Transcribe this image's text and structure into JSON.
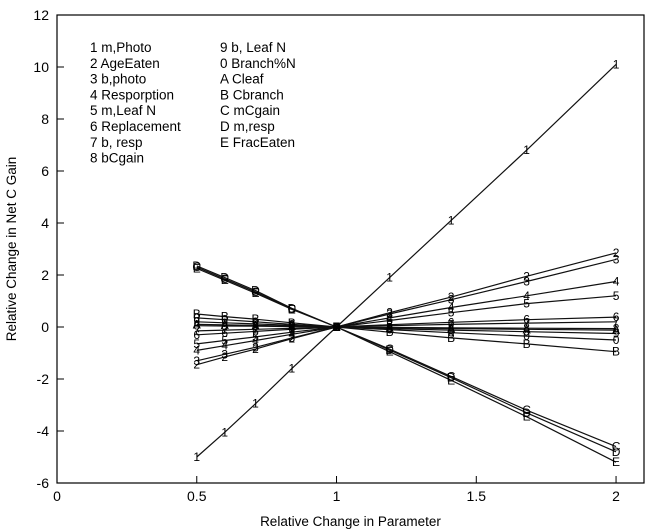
{
  "chart_data": {
    "type": "line",
    "xlabel": "Relative Change in Parameter",
    "ylabel": "Relative Change in Net C Gain",
    "xlim": [
      0,
      2.1
    ],
    "ylim": [
      -6,
      12
    ],
    "x_ticks": [
      0,
      0.5,
      1,
      1.5,
      2
    ],
    "x_tick_labels": [
      "0",
      "0.5",
      "1",
      "1.5",
      "2"
    ],
    "y_ticks": [
      -6,
      -4,
      -2,
      0,
      2,
      4,
      6,
      8,
      10,
      12
    ],
    "y_tick_labels": [
      "-6",
      "-4",
      "-2",
      "0",
      "2",
      "4",
      "6",
      "8",
      "10",
      "12"
    ],
    "grid": false,
    "legend_position": "top-left",
    "legend": [
      "1 m,Photo",
      "2 AgeEaten",
      "3 b,photo",
      "4 Resporption",
      "5 m,Leaf N",
      "6 Replacement",
      "7 b, resp",
      "8 bCgain",
      "9 b, Leaf N",
      "0 Branch%N",
      "A Cleaf",
      "B Cbranch",
      "C mCgain",
      "D m,resp",
      "E FracEaten"
    ],
    "x": [
      0.5,
      0.6,
      0.71,
      0.84,
      1,
      1.19,
      1.41,
      1.68,
      2
    ],
    "series": [
      {
        "name": "1 m,Photo",
        "marker": "1",
        "values": [
          -5.0,
          -4.05,
          -2.95,
          -1.6,
          0,
          1.9,
          4.1,
          6.8,
          10.1
        ]
      },
      {
        "name": "2 AgeEaten",
        "marker": "2",
        "values": [
          -1.45,
          -1.15,
          -0.85,
          -0.45,
          0,
          0.55,
          1.15,
          1.95,
          2.85
        ]
      },
      {
        "name": "3 b,photo",
        "marker": "3",
        "values": [
          -1.3,
          -1.05,
          -0.78,
          -0.42,
          0,
          0.5,
          1.05,
          1.75,
          2.6
        ]
      },
      {
        "name": "4 Resporption",
        "marker": "4",
        "values": [
          -0.9,
          -0.72,
          -0.52,
          -0.28,
          0,
          0.35,
          0.75,
          1.2,
          1.75
        ]
      },
      {
        "name": "5 m,Leaf N",
        "marker": "5",
        "values": [
          -0.65,
          -0.52,
          -0.38,
          -0.2,
          0,
          0.25,
          0.55,
          0.9,
          1.2
        ]
      },
      {
        "name": "6 Replacement",
        "marker": "6",
        "values": [
          -0.3,
          -0.24,
          -0.17,
          -0.09,
          0,
          0.09,
          0.18,
          0.28,
          0.38
        ]
      },
      {
        "name": "7 b, resp",
        "marker": "7",
        "values": [
          -0.15,
          -0.12,
          -0.09,
          -0.05,
          0,
          0.05,
          0.1,
          0.15,
          0.2
        ]
      },
      {
        "name": "8 bCgain",
        "marker": "8",
        "values": [
          0.05,
          0.04,
          0.03,
          0.015,
          0,
          -0.015,
          -0.03,
          -0.045,
          -0.06
        ]
      },
      {
        "name": "9 b, Leaf N",
        "marker": "9",
        "values": [
          0.2,
          0.16,
          0.12,
          0.06,
          0,
          -0.06,
          -0.12,
          -0.18,
          -0.25
        ]
      },
      {
        "name": "0 Branch%N",
        "marker": "0",
        "values": [
          0.35,
          0.28,
          0.2,
          0.1,
          0,
          -0.1,
          -0.22,
          -0.35,
          -0.5
        ]
      },
      {
        "name": "A Cleaf",
        "marker": "A",
        "values": [
          0.1,
          0.08,
          0.06,
          0.03,
          0,
          -0.03,
          -0.06,
          -0.09,
          -0.12
        ]
      },
      {
        "name": "B Cbranch",
        "marker": "B",
        "values": [
          0.5,
          0.4,
          0.3,
          0.16,
          0,
          -0.2,
          -0.42,
          -0.65,
          -0.95
        ]
      },
      {
        "name": "C mCgain",
        "marker": "C",
        "values": [
          2.3,
          1.85,
          1.35,
          0.7,
          0,
          -0.85,
          -1.9,
          -3.2,
          -4.6
        ]
      },
      {
        "name": "D m,resp",
        "marker": "D",
        "values": [
          2.35,
          1.9,
          1.4,
          0.72,
          0,
          -0.88,
          -1.95,
          -3.3,
          -4.8
        ]
      },
      {
        "name": "E FracEaten",
        "marker": "E",
        "values": [
          2.25,
          1.8,
          1.3,
          0.68,
          0,
          -0.95,
          -2.05,
          -3.45,
          -5.2
        ]
      }
    ]
  }
}
